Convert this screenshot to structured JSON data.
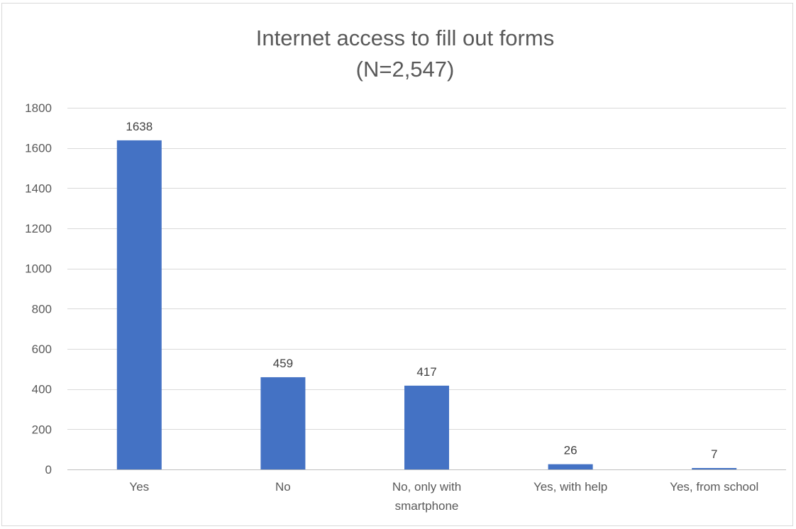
{
  "chart_data": {
    "type": "bar",
    "title": "Internet access to fill out forms",
    "subtitle": "(N=2,547)",
    "categories": [
      "Yes",
      "No",
      "No, only with smartphone",
      "Yes, with help",
      "Yes, from school"
    ],
    "category_label_lines": [
      [
        "Yes"
      ],
      [
        "No"
      ],
      [
        "No, only with",
        "smartphone"
      ],
      [
        "Yes, with help"
      ],
      [
        "Yes, from school"
      ]
    ],
    "values": [
      1638,
      459,
      417,
      26,
      7
    ],
    "data_labels": [
      "1638",
      "459",
      "417",
      "26",
      "7"
    ],
    "ylim": [
      0,
      1800
    ],
    "yticks": [
      0,
      200,
      400,
      600,
      800,
      1000,
      1200,
      1400,
      1600,
      1800
    ],
    "xlabel": "",
    "ylabel": "",
    "grid": true,
    "legend": "none",
    "bar_color": "#4472c4"
  }
}
